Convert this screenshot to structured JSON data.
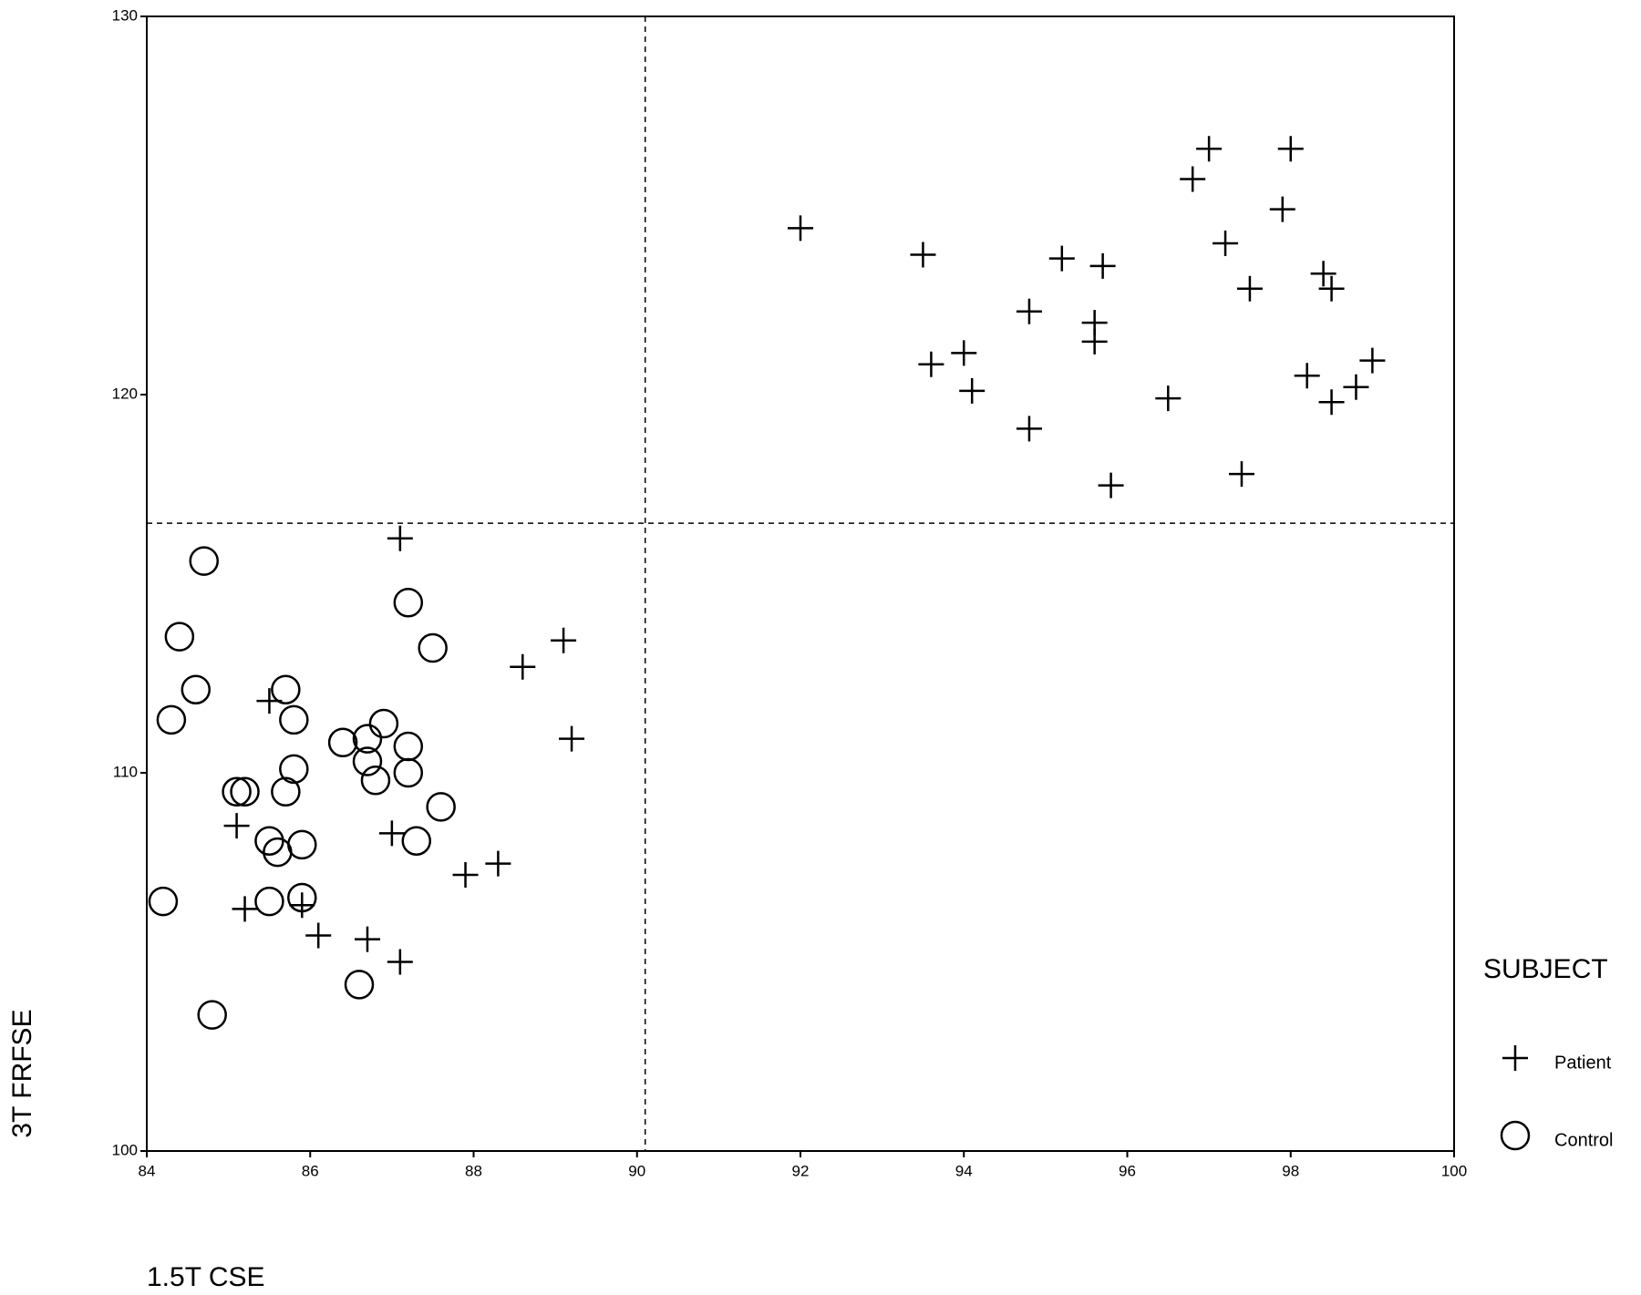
{
  "chart_data": {
    "type": "scatter",
    "x_label": "1.5T CSE",
    "y_label": "3T FRFSE",
    "xlim": [
      84,
      100
    ],
    "xticks": [
      84,
      86,
      88,
      90,
      92,
      94,
      96,
      98,
      100
    ],
    "ylim": [
      100,
      130
    ],
    "yticks": [
      100,
      110,
      120,
      130
    ],
    "reference_lines": {
      "x": 90.1,
      "y": 116.6
    },
    "legend_title": "SUBJECT",
    "legend_position": "right",
    "series": [
      {
        "name": "Patient",
        "marker": "plus",
        "color": "#000000",
        "x": [
          92.0,
          93.5,
          97.0,
          98.0,
          96.8,
          97.9,
          97.2,
          95.2,
          95.7,
          98.4,
          97.5,
          98.5,
          94.8,
          95.6,
          95.6,
          94.0,
          93.6,
          99.0,
          98.2,
          94.1,
          98.8,
          96.5,
          98.5,
          94.8,
          97.4,
          95.8,
          87.1,
          89.1,
          88.6,
          89.2,
          85.5,
          85.1,
          87.0,
          88.3,
          87.9,
          85.2,
          85.9,
          86.1,
          86.7,
          87.1
        ],
        "y": [
          124.4,
          123.7,
          126.5,
          126.5,
          125.7,
          124.9,
          124.0,
          123.6,
          123.4,
          123.2,
          122.8,
          122.8,
          122.2,
          121.9,
          121.4,
          121.1,
          120.8,
          120.9,
          120.5,
          120.1,
          120.2,
          119.9,
          119.8,
          119.1,
          117.9,
          117.6,
          116.2,
          113.5,
          112.8,
          110.9,
          111.9,
          108.6,
          108.4,
          107.6,
          107.3,
          106.4,
          106.5,
          105.7,
          105.6,
          105.0
        ]
      },
      {
        "name": "Control",
        "marker": "circle",
        "color": "#000000",
        "x": [
          84.7,
          84.4,
          87.5,
          87.2,
          84.6,
          84.3,
          85.7,
          85.8,
          86.4,
          86.7,
          86.9,
          87.2,
          86.7,
          87.2,
          85.8,
          86.8,
          85.2,
          85.1,
          85.7,
          87.6,
          85.5,
          85.9,
          85.6,
          87.3,
          84.2,
          85.5,
          85.9,
          86.6,
          84.8
        ],
        "y": [
          115.6,
          113.6,
          113.3,
          114.5,
          112.2,
          111.4,
          112.2,
          111.4,
          110.8,
          110.9,
          111.3,
          110.7,
          110.3,
          110.0,
          110.1,
          109.8,
          109.5,
          109.5,
          109.5,
          109.1,
          108.2,
          108.1,
          107.9,
          108.2,
          106.6,
          106.6,
          106.7,
          104.4,
          103.6
        ]
      }
    ]
  }
}
